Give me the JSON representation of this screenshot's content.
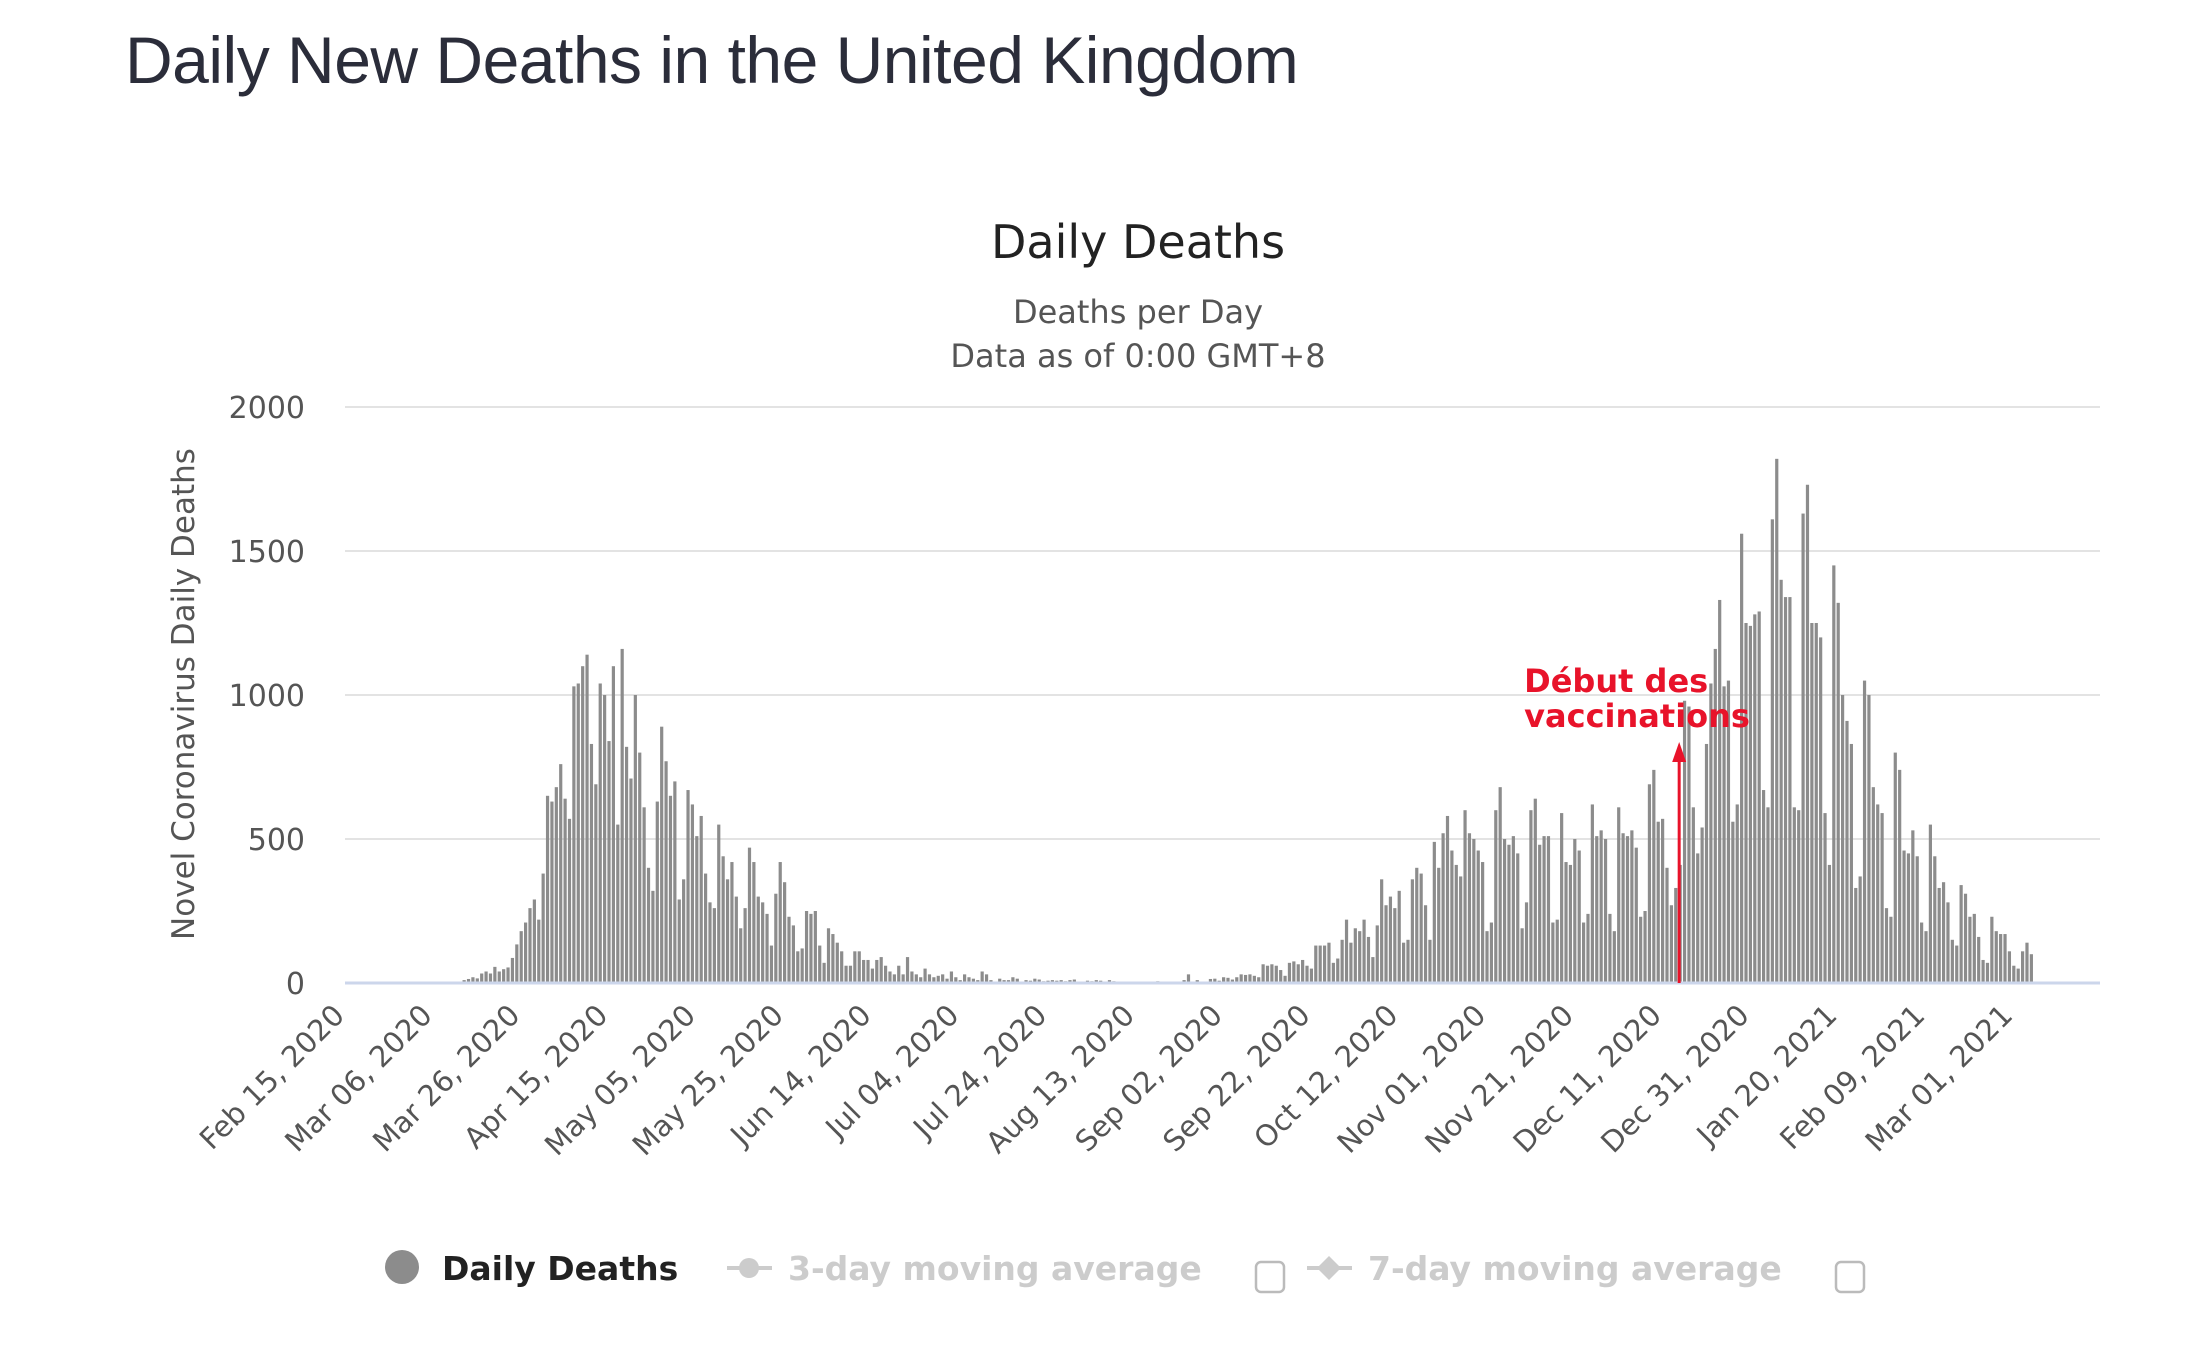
{
  "page": {
    "title": "Daily New Deaths in the United Kingdom"
  },
  "chart_data": {
    "type": "bar",
    "title": "Daily Deaths",
    "subtitle_lines": [
      "Deaths per Day",
      "Data as of 0:00 GMT+8"
    ],
    "ylabel": "Novel Coronavirus Daily Deaths",
    "xlabel": "",
    "ylim": [
      0,
      2000
    ],
    "yticks": [
      0,
      500,
      1000,
      1500,
      2000
    ],
    "grid": true,
    "start_date": "Feb 15, 2020",
    "xtick_labels": [
      {
        "day": 0,
        "label": "Feb 15, 2020"
      },
      {
        "day": 20,
        "label": "Mar 06, 2020"
      },
      {
        "day": 40,
        "label": "Mar 26, 2020"
      },
      {
        "day": 60,
        "label": "Apr 15, 2020"
      },
      {
        "day": 80,
        "label": "May 05, 2020"
      },
      {
        "day": 100,
        "label": "May 25, 2020"
      },
      {
        "day": 120,
        "label": "Jun 14, 2020"
      },
      {
        "day": 140,
        "label": "Jul 04, 2020"
      },
      {
        "day": 160,
        "label": "Jul 24, 2020"
      },
      {
        "day": 180,
        "label": "Aug 13, 2020"
      },
      {
        "day": 200,
        "label": "Sep 02, 2020"
      },
      {
        "day": 220,
        "label": "Sep 22, 2020"
      },
      {
        "day": 240,
        "label": "Oct 12, 2020"
      },
      {
        "day": 260,
        "label": "Nov 01, 2020"
      },
      {
        "day": 280,
        "label": "Nov 21, 2020"
      },
      {
        "day": 300,
        "label": "Dec 11, 2020"
      },
      {
        "day": 320,
        "label": "Dec 31, 2020"
      },
      {
        "day": 340,
        "label": "Jan 20, 2021"
      },
      {
        "day": 360,
        "label": "Feb 09, 2021"
      },
      {
        "day": 380,
        "label": "Mar 01, 2021"
      }
    ],
    "series": [
      {
        "name": "Daily Deaths",
        "color": "#8c8c8c",
        "values": [
          0,
          0,
          0,
          0,
          0,
          0,
          0,
          0,
          0,
          0,
          0,
          0,
          0,
          0,
          0,
          0,
          0,
          0,
          0,
          0,
          1,
          0,
          2,
          1,
          3,
          5,
          10,
          14,
          20,
          16,
          33,
          40,
          33,
          56,
          40,
          48,
          54,
          87,
          134,
          180,
          210,
          260,
          290,
          220,
          380,
          650,
          630,
          680,
          760,
          640,
          570,
          1030,
          1040,
          1100,
          1140,
          830,
          690,
          1040,
          1000,
          840,
          1100,
          550,
          1160,
          820,
          710,
          1000,
          800,
          610,
          400,
          320,
          630,
          890,
          770,
          650,
          700,
          290,
          360,
          670,
          620,
          510,
          580,
          380,
          280,
          260,
          550,
          440,
          360,
          420,
          300,
          190,
          260,
          470,
          420,
          300,
          280,
          240,
          130,
          310,
          420,
          350,
          230,
          200,
          110,
          120,
          250,
          240,
          250,
          130,
          70,
          190,
          170,
          140,
          110,
          60,
          60,
          110,
          110,
          80,
          80,
          50,
          80,
          90,
          60,
          40,
          30,
          60,
          30,
          90,
          40,
          30,
          20,
          50,
          30,
          20,
          25,
          30,
          15,
          40,
          20,
          10,
          30,
          20,
          15,
          10,
          40,
          30,
          10,
          5,
          15,
          10,
          10,
          20,
          15,
          5,
          10,
          8,
          15,
          12,
          6,
          8,
          10,
          8,
          10,
          6,
          10,
          12,
          5,
          5,
          8,
          6,
          10,
          8,
          5,
          10,
          6,
          3,
          2,
          3,
          4,
          2,
          2,
          5,
          1,
          1,
          6,
          4,
          2,
          2,
          3,
          2,
          10,
          30,
          5,
          10,
          4,
          5,
          14,
          15,
          8,
          20,
          18,
          12,
          20,
          30,
          28,
          30,
          25,
          20,
          65,
          60,
          65,
          60,
          45,
          25,
          70,
          75,
          65,
          80,
          60,
          50,
          130,
          130,
          130,
          140,
          70,
          85,
          150,
          220,
          140,
          190,
          180,
          220,
          160,
          90,
          200,
          360,
          270,
          300,
          260,
          320,
          140,
          150,
          360,
          400,
          380,
          270,
          150,
          490,
          400,
          520,
          580,
          460,
          410,
          370,
          600,
          520,
          500,
          460,
          420,
          180,
          210,
          600,
          680,
          500,
          480,
          510,
          450,
          190,
          280,
          600,
          640,
          480,
          510,
          510,
          210,
          220,
          590,
          420,
          410,
          500,
          460,
          210,
          240,
          620,
          510,
          530,
          500,
          240,
          180,
          610,
          520,
          510,
          530,
          470,
          230,
          250,
          690,
          740,
          560,
          570,
          400,
          270,
          330,
          410,
          980,
          960,
          610,
          450,
          540,
          830,
          1040,
          1160,
          1330,
          1030,
          1050,
          560,
          620,
          1560,
          1250,
          1240,
          1280,
          1290,
          670,
          610,
          1610,
          1820,
          1400,
          1340,
          1340,
          610,
          600,
          1630,
          1730,
          1250,
          1250,
          1200,
          590,
          410,
          1450,
          1320,
          1000,
          910,
          830,
          330,
          370,
          1050,
          1000,
          680,
          620,
          590,
          260,
          230,
          800,
          740,
          460,
          450,
          530,
          440,
          210,
          180,
          550,
          440,
          330,
          350,
          280,
          150,
          130,
          340,
          310,
          230,
          240,
          160,
          80,
          70,
          230,
          180,
          170,
          170,
          110,
          60,
          50,
          110,
          140,
          100
        ]
      }
    ],
    "annotation": {
      "lines": [
        "Début des",
        "vaccinations"
      ],
      "day": 303,
      "color": "#e8132a",
      "arrow_top_value": 830
    },
    "legend": {
      "placement": "bottom",
      "items": [
        {
          "label": "Daily Deaths",
          "active": true,
          "color": "#8c8c8c",
          "text_color": "#222222",
          "checkbox": false
        },
        {
          "label": "3-day moving average",
          "active": false,
          "color": "#cccccc",
          "text_color": "#cccccc",
          "checkbox": true,
          "checked": false
        },
        {
          "label": "7-day moving average",
          "active": false,
          "color": "#cccccc",
          "text_color": "#cccccc",
          "checkbox": true,
          "checked": false
        }
      ]
    }
  }
}
